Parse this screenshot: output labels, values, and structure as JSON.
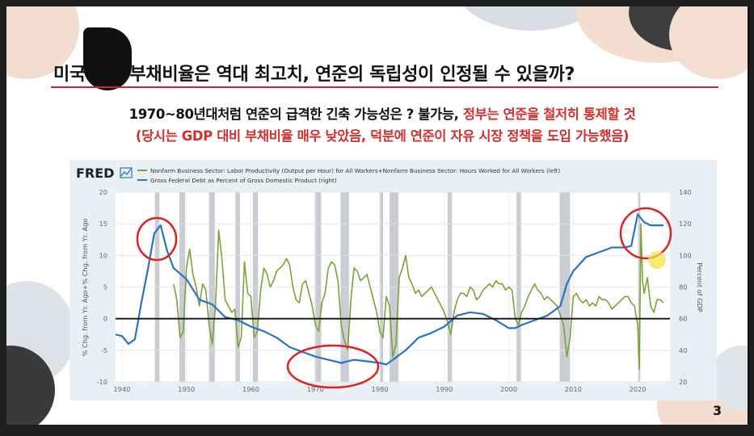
{
  "slide": {
    "title": "미국 정부 부채비율은 역대 최고치, 연준의 독립성이 인정될 수 있을까?",
    "subtitle_black": "1970~80년대처럼 연준의 급격한 긴축 가능성은 ? 불가능, ",
    "subtitle_red": "정부는 연준을 철저히 통제할 것",
    "subtitle_line2": "(당시는 GDP 대비 부채비율 매우 낮았음, 덕분에 연준이 자유 시장 정책을 도입 가능했음)",
    "page_number": "3"
  },
  "colors": {
    "productivity_series": "#7da13a",
    "debt_series": "#2b72c2",
    "annotation_circle": "#e02020",
    "recession_band": "#c9cdd2",
    "chart_background": "#e8eff5",
    "plot_background": "#ffffff"
  },
  "chart_data": {
    "type": "line",
    "source_logo": "FRED",
    "legend": [
      "Nonfarm Business Sector: Labor Productivity (Output per Hour) for All Workers+Nonfarm Business Sector: Hours Worked for All Workers (left)",
      "Gross Federal Debt as Percent of Gross Domestic Product (right)"
    ],
    "ylabel_left": "% Chg. from Yr. Ago+% Chg. from Yr. Ago",
    "ylabel_right": "Percent of GDP",
    "x_ticks": [
      "1940",
      "1950",
      "1960",
      "1970",
      "1980",
      "1990",
      "2000",
      "2010",
      "2020"
    ],
    "y_left_ticks": [
      "20",
      "15",
      "10",
      "5",
      "0",
      "-5",
      "-10"
    ],
    "y_right_ticks": [
      "140",
      "120",
      "100",
      "80",
      "60",
      "40",
      "20"
    ],
    "xlim": [
      1939,
      2025
    ],
    "ylim_left": [
      -10,
      20
    ],
    "ylim_right": [
      20,
      140
    ],
    "recessions": [
      [
        1945.1,
        1945.8
      ],
      [
        1948.9,
        1949.8
      ],
      [
        1953.5,
        1954.4
      ],
      [
        1957.6,
        1958.3
      ],
      [
        1960.3,
        1961.1
      ],
      [
        1969.9,
        1970.9
      ],
      [
        1973.9,
        1975.2
      ],
      [
        1980.0,
        1980.5
      ],
      [
        1981.5,
        1982.9
      ],
      [
        1990.5,
        1991.2
      ],
      [
        2001.2,
        2001.9
      ],
      [
        2007.9,
        2009.5
      ],
      [
        2020.1,
        2020.4
      ]
    ],
    "series": [
      {
        "name": "Gross Federal Debt as Percent of Gross Domestic Product (right)",
        "axis": "right",
        "x": [
          1939,
          1940,
          1941,
          1942,
          1943,
          1944,
          1945,
          1946,
          1947,
          1948,
          1950,
          1952,
          1954,
          1956,
          1958,
          1960,
          1962,
          1964,
          1966,
          1968,
          1970,
          1972,
          1974,
          1976,
          1978,
          1980,
          1981,
          1982,
          1984,
          1986,
          1988,
          1990,
          1992,
          1994,
          1996,
          1998,
          2000,
          2001,
          2002,
          2004,
          2006,
          2008,
          2009,
          2010,
          2012,
          2014,
          2016,
          2018,
          2019,
          2020,
          2021,
          2022,
          2023,
          2024
        ],
        "values": [
          50,
          49,
          44,
          47,
          70,
          91,
          114,
          119,
          103,
          92,
          85,
          72,
          69,
          61,
          59,
          55,
          52,
          48,
          42,
          39,
          36,
          34,
          32,
          34,
          33,
          32,
          31,
          34,
          40,
          48,
          51,
          55,
          62,
          64,
          63,
          59,
          54,
          54,
          56,
          59,
          62,
          68,
          82,
          90,
          99,
          102,
          105,
          105,
          106,
          126,
          121,
          119,
          119,
          119
        ]
      },
      {
        "name": "Nonfarm Business Sector: Labor Productivity (Output per Hour) for All Workers+Nonfarm Business Sector: Hours Worked for All Workers (left)",
        "axis": "left",
        "x": [
          1948.0,
          1948.5,
          1949.0,
          1949.5,
          1950.0,
          1950.5,
          1951.0,
          1951.5,
          1952.0,
          1952.5,
          1953.0,
          1953.5,
          1954.0,
          1954.5,
          1955.0,
          1955.5,
          1956.0,
          1956.5,
          1957.0,
          1957.5,
          1958.0,
          1958.5,
          1959.0,
          1959.5,
          1960.0,
          1960.5,
          1961.0,
          1961.5,
          1962.0,
          1962.5,
          1963.0,
          1963.5,
          1964.0,
          1964.5,
          1965.0,
          1965.5,
          1966.0,
          1966.5,
          1967.0,
          1967.5,
          1968.0,
          1968.5,
          1969.0,
          1969.5,
          1970.0,
          1970.5,
          1971.0,
          1971.5,
          1972.0,
          1972.5,
          1973.0,
          1973.5,
          1974.0,
          1974.5,
          1975.0,
          1975.5,
          1976.0,
          1976.5,
          1977.0,
          1977.5,
          1978.0,
          1978.5,
          1979.0,
          1979.5,
          1980.0,
          1980.5,
          1981.0,
          1981.5,
          1982.0,
          1982.5,
          1983.0,
          1983.5,
          1984.0,
          1984.5,
          1985.0,
          1985.5,
          1986.0,
          1986.5,
          1987.0,
          1987.5,
          1988.0,
          1988.5,
          1989.0,
          1989.5,
          1990.0,
          1990.5,
          1991.0,
          1991.5,
          1992.0,
          1992.5,
          1993.0,
          1993.5,
          1994.0,
          1994.5,
          1995.0,
          1995.5,
          1996.0,
          1996.5,
          1997.0,
          1997.5,
          1998.0,
          1998.5,
          1999.0,
          1999.5,
          2000.0,
          2000.5,
          2001.0,
          2001.5,
          2002.0,
          2002.5,
          2003.0,
          2003.5,
          2004.0,
          2004.5,
          2005.0,
          2005.5,
          2006.0,
          2006.5,
          2007.0,
          2007.5,
          2008.0,
          2008.5,
          2009.0,
          2009.5,
          2010.0,
          2010.5,
          2011.0,
          2011.5,
          2012.0,
          2012.5,
          2013.0,
          2013.5,
          2014.0,
          2014.5,
          2015.0,
          2015.5,
          2016.0,
          2016.5,
          2017.0,
          2017.5,
          2018.0,
          2018.5,
          2019.0,
          2019.5,
          2020.0,
          2020.25,
          2020.5,
          2020.75,
          2021.0,
          2021.5,
          2022.0,
          2022.5,
          2023.0,
          2023.5,
          2024.0
        ],
        "values": [
          5.5,
          3.0,
          -3.0,
          -2.0,
          8.0,
          11.0,
          7.0,
          5.0,
          2.0,
          5.5,
          4.5,
          -1.0,
          -4.0,
          2.0,
          14.0,
          9.5,
          3.0,
          2.0,
          1.0,
          1.5,
          -4.5,
          -3.0,
          9.0,
          4.0,
          3.5,
          -3.0,
          -2.0,
          4.5,
          8.0,
          7.0,
          5.0,
          6.0,
          7.5,
          8.0,
          8.5,
          9.5,
          8.5,
          5.0,
          3.0,
          2.5,
          5.5,
          6.0,
          4.0,
          2.0,
          -1.0,
          -2.0,
          2.5,
          4.0,
          8.0,
          9.0,
          8.5,
          6.0,
          -1.0,
          -3.5,
          -5.0,
          3.0,
          8.0,
          7.5,
          6.0,
          6.5,
          7.0,
          5.0,
          3.0,
          1.0,
          -2.0,
          -3.0,
          3.5,
          2.0,
          -6.0,
          -4.0,
          6.5,
          8.0,
          10.0,
          6.5,
          5.5,
          4.0,
          4.5,
          3.5,
          4.0,
          4.5,
          5.0,
          4.0,
          3.0,
          2.0,
          1.0,
          -0.5,
          -2.5,
          1.0,
          3.0,
          4.0,
          4.0,
          3.5,
          5.0,
          4.5,
          3.0,
          3.5,
          4.5,
          5.0,
          5.5,
          5.0,
          6.0,
          5.5,
          5.5,
          4.5,
          5.0,
          4.5,
          0.0,
          -1.0,
          1.0,
          2.0,
          3.5,
          4.5,
          5.5,
          4.5,
          4.0,
          3.0,
          3.5,
          3.0,
          2.5,
          2.0,
          0.5,
          -1.0,
          -6.0,
          -3.0,
          3.5,
          4.0,
          3.0,
          2.5,
          3.0,
          2.0,
          2.5,
          2.0,
          3.5,
          3.0,
          3.0,
          2.5,
          1.5,
          2.0,
          2.5,
          3.0,
          3.5,
          3.5,
          2.5,
          2.0,
          -1.0,
          -8.0,
          15.0,
          6.0,
          4.0,
          6.5,
          2.0,
          1.0,
          3.0,
          3.0,
          2.5
        ]
      }
    ]
  }
}
